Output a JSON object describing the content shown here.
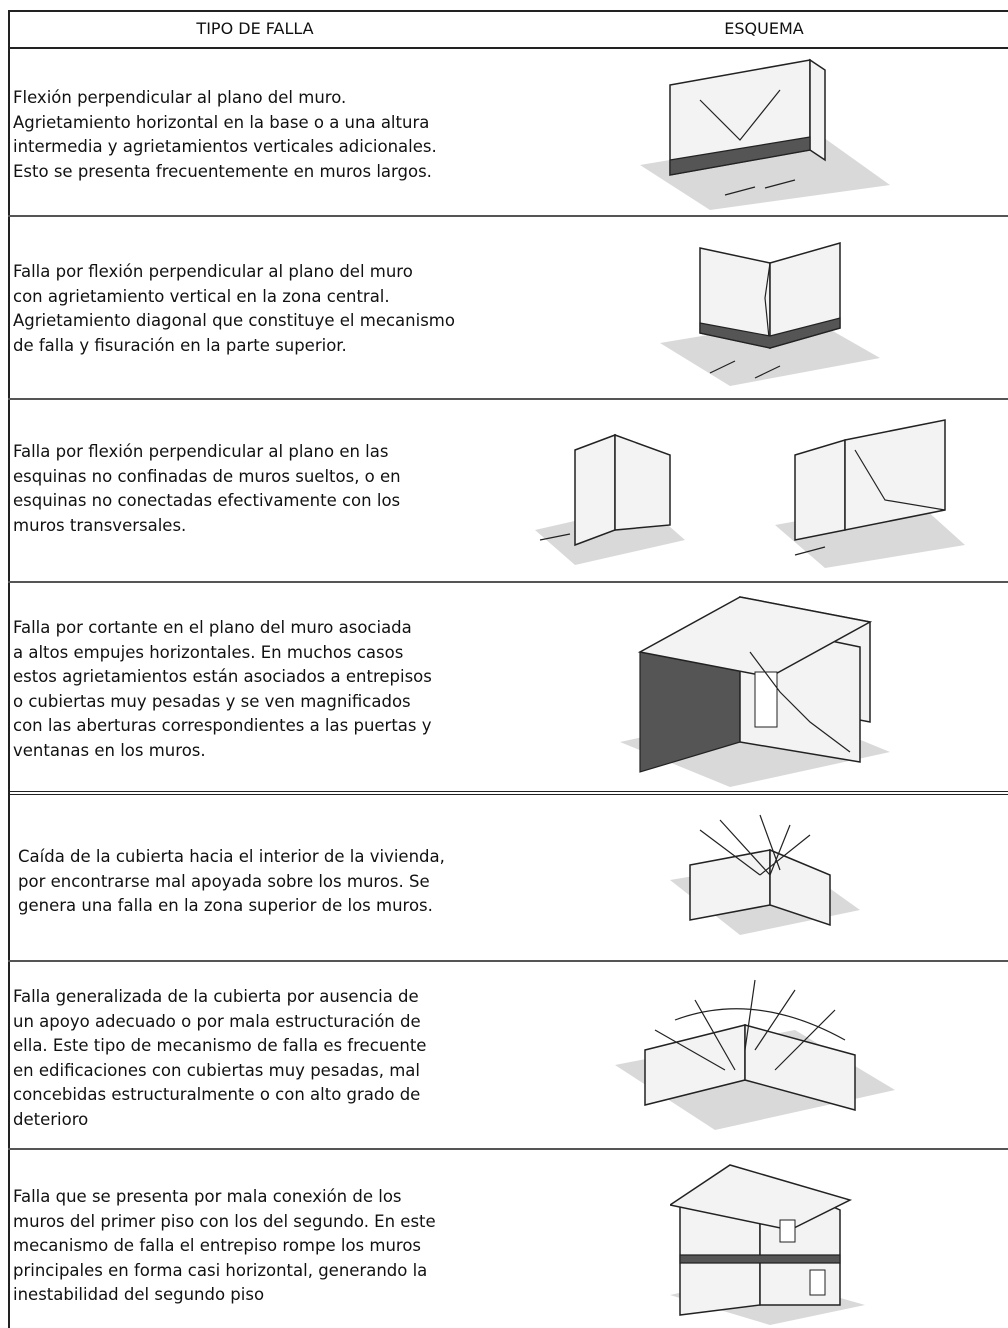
{
  "table": {
    "header": [
      "TIPO DE FALLA",
      "ESQUEMA"
    ],
    "rows": [
      {
        "description": [
          "Flexión perpendicular al plano del muro.",
          "Agrietamiento horizontal en la base o a una altura",
          "intermedia y agrietamientos verticales adicionales.",
          "Esto se presenta frecuentemente en muros largos."
        ]
      },
      {
        "description": [
          "Falla por flexión perpendicular al plano del muro",
          "con agrietamiento vertical en la zona central.",
          "Agrietamiento diagonal que constituye el mecanismo",
          "de falla y fisuración en la parte superior."
        ]
      },
      {
        "description": [
          "Falla por flexión perpendicular al plano en las",
          "esquinas no confinadas de muros sueltos, o en",
          "esquinas no conectadas efectivamente con los",
          "muros transversales."
        ]
      },
      {
        "description": [
          "Falla por cortante en el plano del muro asociada",
          "a altos empujes horizontales. En muchos casos",
          "estos agrietamientos están asociados a entrepisos",
          "o cubiertas muy pesadas y se ven magnificados",
          "con las aberturas correspondientes a las puertas y",
          "ventanas en los muros."
        ]
      },
      {
        "description": [
          "Caída de la cubierta hacia el interior de la vivienda,",
          "por encontrarse mal apoyada sobre los muros. Se",
          "genera una falla en la zona superior de los muros."
        ]
      },
      {
        "description": [
          "Falla generalizada de la cubierta por ausencia de",
          "un apoyo adecuado o por mala estructuración de",
          "ella. Este tipo de mecanismo de falla es frecuente",
          "en edificaciones con cubiertas muy pesadas, mal",
          "concebidas estructuralmente o con alto grado de",
          "deterioro"
        ]
      },
      {
        "description": [
          "Falla que se presenta por mala conexión de los",
          "muros del primer piso con los del segundo. En este",
          "mecanismo de falla el entrepiso rompe los muros",
          "principales en forma casi horizontal, generando la",
          "inestabilidad del segundo piso"
        ]
      }
    ]
  }
}
